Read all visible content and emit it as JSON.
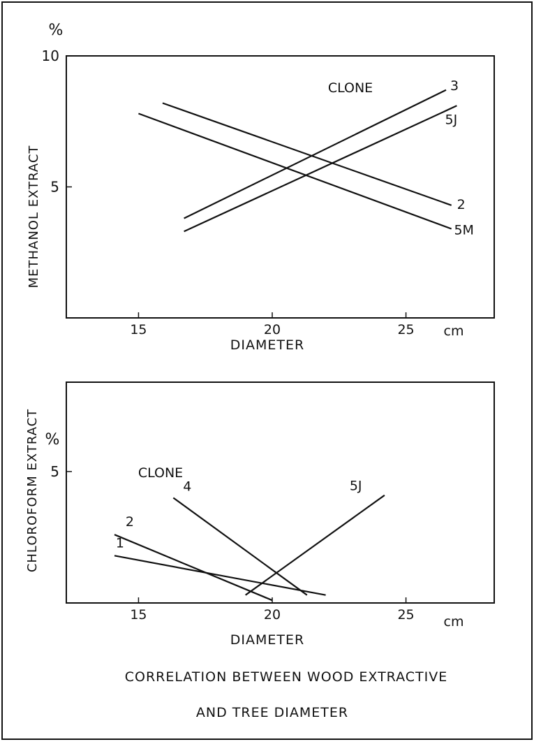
{
  "caption": {
    "line1": "CORRELATION BETWEEN  WOOD  EXTRACTIVE",
    "line2": "AND TREE DIAMETER"
  },
  "chart_data": [
    {
      "type": "line",
      "xlabel": "DIAMETER",
      "x_unit": "cm",
      "ylabel": "METHANOL EXTRACT",
      "y_unit": "%",
      "xlim": [
        12.3,
        28.3
      ],
      "ylim": [
        0,
        10
      ],
      "xticks": [
        15,
        20,
        25
      ],
      "yticks": [
        5,
        10
      ],
      "legend_title": "CLONE",
      "series": [
        {
          "name": "3",
          "x": [
            16.7,
            26.5
          ],
          "y": [
            3.8,
            8.7
          ]
        },
        {
          "name": "5J",
          "x": [
            16.7,
            26.9
          ],
          "y": [
            3.3,
            8.1
          ]
        },
        {
          "name": "2",
          "x": [
            15.9,
            26.7
          ],
          "y": [
            8.2,
            4.3
          ]
        },
        {
          "name": "5M",
          "x": [
            15.0,
            26.7
          ],
          "y": [
            7.8,
            3.4
          ]
        }
      ]
    },
    {
      "type": "line",
      "xlabel": "DIAMETER",
      "x_unit": "cm",
      "ylabel": "CHLOROFORM EXTRACT",
      "y_unit": "%",
      "xlim": [
        12.3,
        28.3
      ],
      "ylim": [
        0,
        8.4
      ],
      "xticks": [
        15,
        20,
        25
      ],
      "yticks": [
        5
      ],
      "legend_title": "CLONE",
      "series": [
        {
          "name": "1",
          "x": [
            14.1,
            22.0
          ],
          "y": [
            1.8,
            0.3
          ]
        },
        {
          "name": "2",
          "x": [
            14.1,
            20.0
          ],
          "y": [
            2.6,
            0.1
          ]
        },
        {
          "name": "4",
          "x": [
            16.3,
            21.3
          ],
          "y": [
            4.0,
            0.3
          ]
        },
        {
          "name": "5J",
          "x": [
            19.0,
            24.2
          ],
          "y": [
            0.3,
            4.1
          ]
        }
      ]
    }
  ]
}
